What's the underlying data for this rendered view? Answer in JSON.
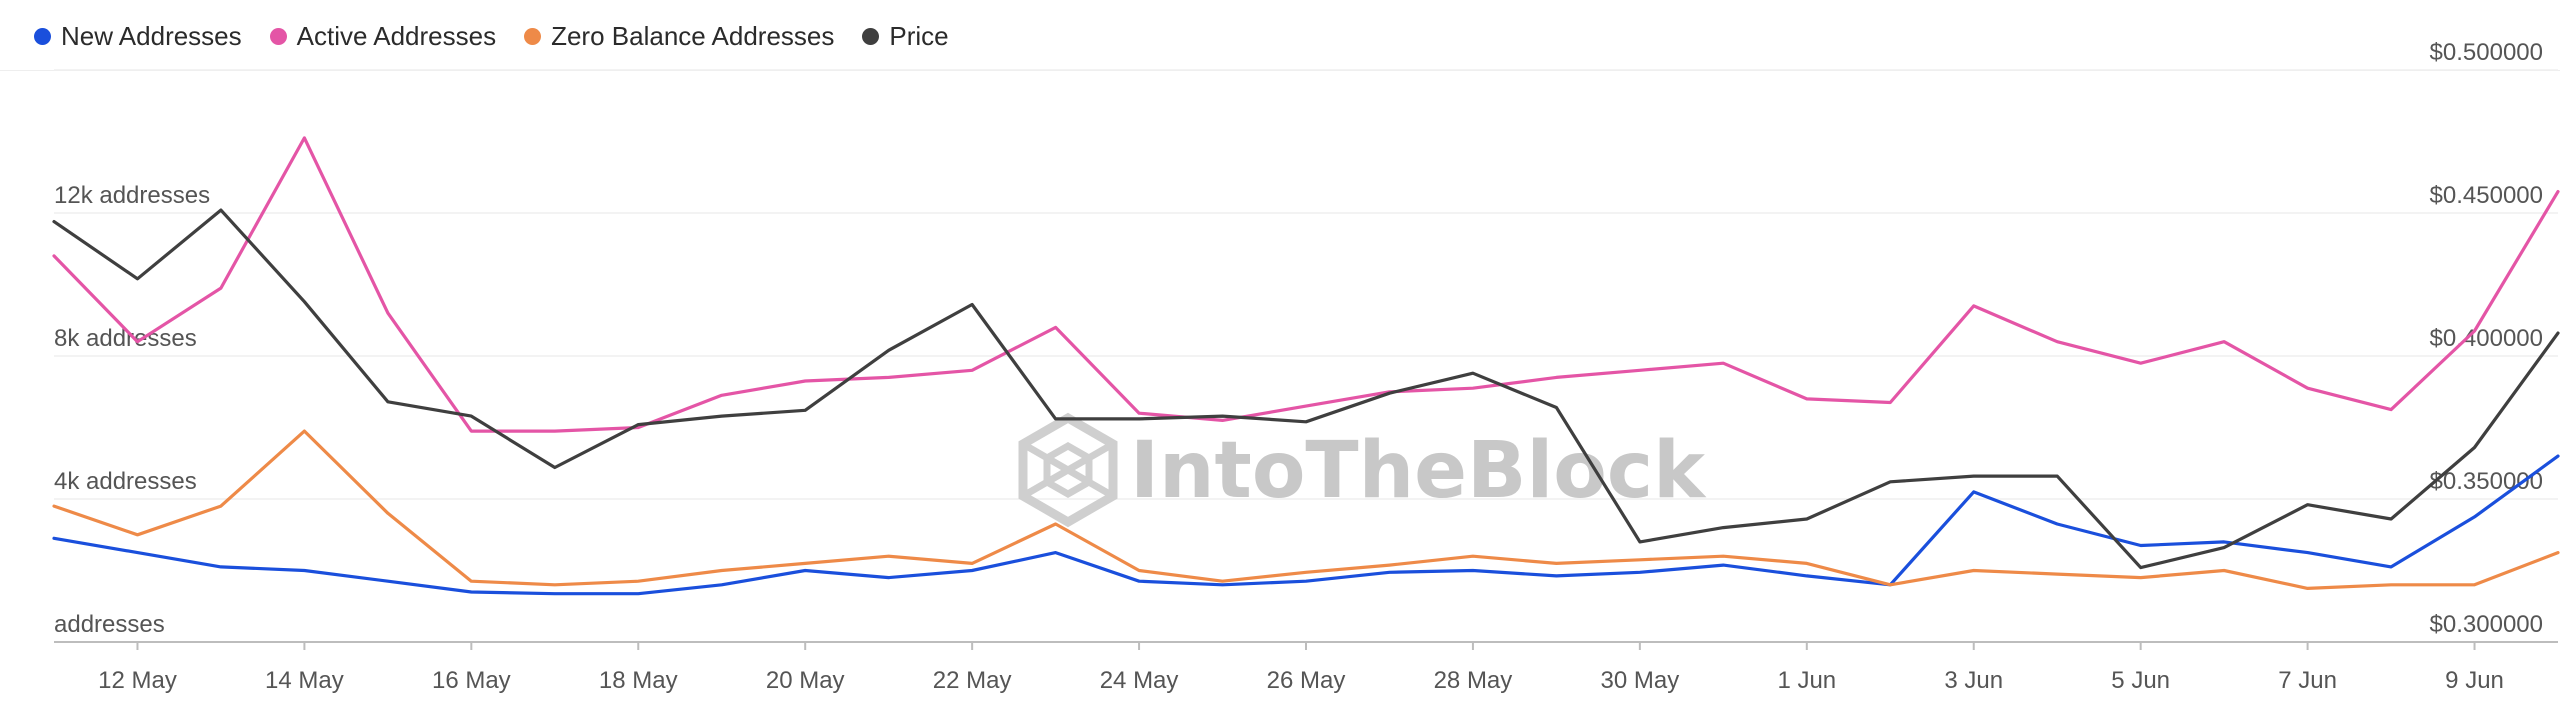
{
  "legend": [
    {
      "name": "New Addresses",
      "color": "#1a4fdc"
    },
    {
      "name": "Active Addresses",
      "color": "#e455a6"
    },
    {
      "name": "Zero Balance Addresses",
      "color": "#ee8a48"
    },
    {
      "name": "Price",
      "color": "#3f3f3f"
    }
  ],
  "watermark": "IntoTheBlock",
  "chart_data": {
    "type": "line",
    "x": [
      "11 May",
      "12 May",
      "13 May",
      "14 May",
      "15 May",
      "16 May",
      "17 May",
      "18 May",
      "19 May",
      "20 May",
      "21 May",
      "22 May",
      "23 May",
      "24 May",
      "25 May",
      "26 May",
      "27 May",
      "28 May",
      "29 May",
      "30 May",
      "31 May",
      "1 Jun",
      "2 Jun",
      "3 Jun",
      "4 Jun",
      "5 Jun",
      "6 Jun",
      "7 Jun",
      "8 Jun",
      "9 Jun",
      "10 Jun"
    ],
    "x_tick_labels": [
      "12 May",
      "14 May",
      "16 May",
      "18 May",
      "20 May",
      "22 May",
      "24 May",
      "26 May",
      "28 May",
      "30 May",
      "1 Jun",
      "3 Jun",
      "5 Jun",
      "7 Jun",
      "9 Jun"
    ],
    "y_left": {
      "ticks": [
        0,
        4000,
        8000,
        12000
      ],
      "tick_labels": [
        "addresses",
        "4k addresses",
        "8k addresses",
        "12k addresses"
      ],
      "range": [
        0,
        16000
      ]
    },
    "y_right": {
      "ticks": [
        0.3,
        0.35,
        0.4,
        0.45,
        0.5
      ],
      "tick_labels": [
        "$0.300000",
        "$0.350000",
        "$0.400000",
        "$0.450000",
        "$0.500000"
      ],
      "range": [
        0.3,
        0.5
      ]
    },
    "grid": true,
    "legend_position": "top-left",
    "series": [
      {
        "name": "Active Addresses",
        "axis": "left",
        "color": "#e455a6",
        "values": [
          10800,
          8400,
          9900,
          14100,
          9200,
          5900,
          5900,
          6000,
          6900,
          7300,
          7400,
          7600,
          8800,
          6400,
          6200,
          6600,
          7000,
          7100,
          7400,
          7600,
          7800,
          6800,
          6700,
          9400,
          8400,
          7800,
          8400,
          7100,
          6500,
          8700,
          12600
        ]
      },
      {
        "name": "New Addresses",
        "axis": "left",
        "color": "#1a4fdc",
        "values": [
          2900,
          2500,
          2100,
          2000,
          1700,
          1400,
          1350,
          1350,
          1600,
          2000,
          1800,
          2000,
          2500,
          1700,
          1600,
          1700,
          1950,
          2000,
          1850,
          1950,
          2150,
          1850,
          1600,
          4200,
          3300,
          2700,
          2800,
          2500,
          2100,
          3500,
          5200
        ]
      },
      {
        "name": "Zero Balance Addresses",
        "axis": "left",
        "color": "#ee8a48",
        "values": [
          3800,
          3000,
          3800,
          5900,
          3600,
          1700,
          1600,
          1700,
          2000,
          2200,
          2400,
          2200,
          3300,
          2000,
          1700,
          1950,
          2150,
          2400,
          2200,
          2300,
          2400,
          2200,
          1600,
          2000,
          1900,
          1800,
          2000,
          1500,
          1600,
          1600,
          2500
        ]
      },
      {
        "name": "Price",
        "axis": "right",
        "color": "#3f3f3f",
        "values": [
          0.447,
          0.427,
          0.451,
          0.419,
          0.384,
          0.379,
          0.361,
          0.376,
          0.379,
          0.381,
          0.402,
          0.418,
          0.378,
          0.378,
          0.379,
          0.377,
          0.387,
          0.394,
          0.382,
          0.335,
          0.34,
          0.343,
          0.356,
          0.358,
          0.358,
          0.326,
          0.333,
          0.348,
          0.343,
          0.368,
          0.408
        ]
      }
    ]
  }
}
